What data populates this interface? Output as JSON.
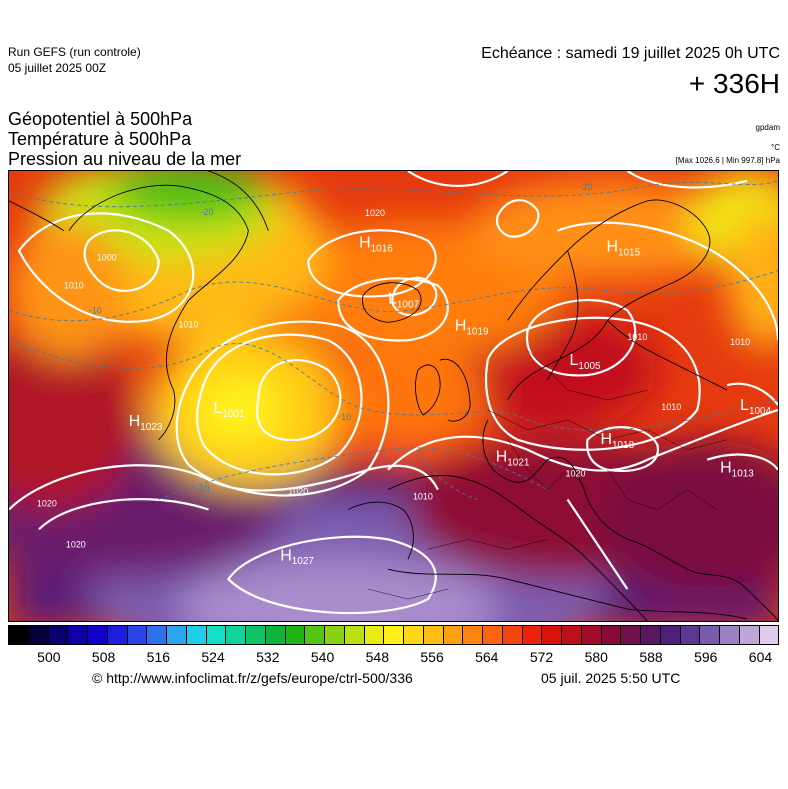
{
  "header": {
    "run_title": "Run GEFS (run controle)",
    "run_date": "05 juillet 2025 00Z",
    "echeance": "Echéance : samedi 19 juillet 2025 0h UTC",
    "lead_time": "+ 336H"
  },
  "fields": {
    "geopotential": "Géopotentiel à 500hPa",
    "temperature": "Température à 500hPa",
    "pressure": "Pression au niveau de la mer"
  },
  "units": {
    "geopotential": "gpdam",
    "temperature": "°C",
    "pressure": "[Max 1026.6 | Min 997.8] hPa"
  },
  "colorbar": {
    "ticks": [
      "500",
      "508",
      "516",
      "524",
      "532",
      "540",
      "548",
      "556",
      "564",
      "572",
      "580",
      "588",
      "596",
      "604"
    ],
    "colors": [
      "#000000",
      "#06003a",
      "#0b006f",
      "#0c00a6",
      "#1000c9",
      "#1d1ddd",
      "#2a44e8",
      "#2f70ee",
      "#2aa5ee",
      "#22cde8",
      "#15e0c5",
      "#12d49a",
      "#10c46a",
      "#0fb43d",
      "#20b414",
      "#56c412",
      "#8ad212",
      "#bde013",
      "#e7ec14",
      "#fff01c",
      "#ffd61a",
      "#ffbb16",
      "#ff9f13",
      "#ff8311",
      "#fc650f",
      "#f5450e",
      "#ec220e",
      "#d9110e",
      "#bd0f1a",
      "#a10c2a",
      "#870a3a",
      "#6f0f4c",
      "#5a1662",
      "#4d1e7a",
      "#5a3891",
      "#7a5aaa",
      "#9c80c2",
      "#bfa6d7",
      "#dfccea"
    ]
  },
  "map": {
    "pressure_centers": [
      {
        "kind": "H",
        "value": "1023"
      },
      {
        "kind": "L",
        "value": "1001"
      },
      {
        "kind": "H",
        "value": "1027"
      },
      {
        "kind": "H",
        "value": "1021"
      },
      {
        "kind": "L",
        "value": "1007"
      },
      {
        "kind": "H",
        "value": "1019"
      },
      {
        "kind": "L",
        "value": "1005"
      },
      {
        "kind": "H",
        "value": "1018"
      },
      {
        "kind": "H",
        "value": "1013"
      },
      {
        "kind": "L",
        "value": "1004"
      },
      {
        "kind": "H",
        "value": "1016"
      },
      {
        "kind": "H",
        "value": "1015"
      }
    ],
    "isobar_labels": [
      "1020",
      "1010",
      "1000",
      "1020",
      "1010",
      "1020",
      "1020",
      "1010",
      "1020",
      "1010",
      "1010",
      "1010"
    ],
    "isotherm_labels": [
      "-20",
      "-10",
      "-10",
      "-10",
      "-20"
    ]
  },
  "footer": {
    "credit": "© http://www.infoclimat.fr/z/gefs/europe/ctrl-500/336",
    "timestamp": "05 juil. 2025  5:50 UTC"
  }
}
